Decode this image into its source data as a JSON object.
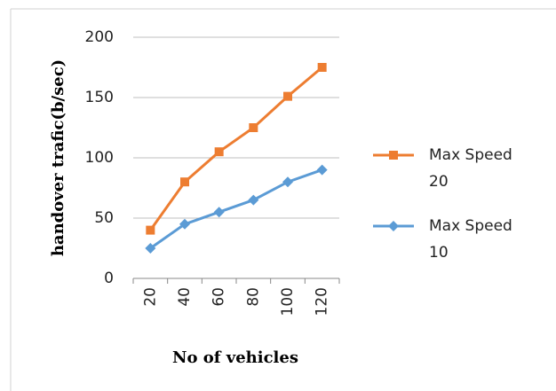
{
  "chart_data": {
    "type": "line",
    "x_label": "No of vehicles",
    "y_label": "handover trafic(b/sec)",
    "categories": [
      "20",
      "40",
      "60",
      "80",
      "100",
      "120"
    ],
    "series": [
      {
        "name": "Max Speed 20",
        "color": "#ed7d31",
        "marker": "square",
        "values": [
          40,
          80,
          105,
          125,
          151,
          175
        ]
      },
      {
        "name": "Max Speed 10",
        "color": "#5b9bd5",
        "marker": "diamond",
        "values": [
          25,
          45,
          55,
          65,
          80,
          90
        ]
      }
    ],
    "ylim": [
      0,
      200
    ],
    "yticks": [
      0,
      50,
      100,
      150,
      200
    ],
    "grid": true,
    "legend": "right"
  }
}
